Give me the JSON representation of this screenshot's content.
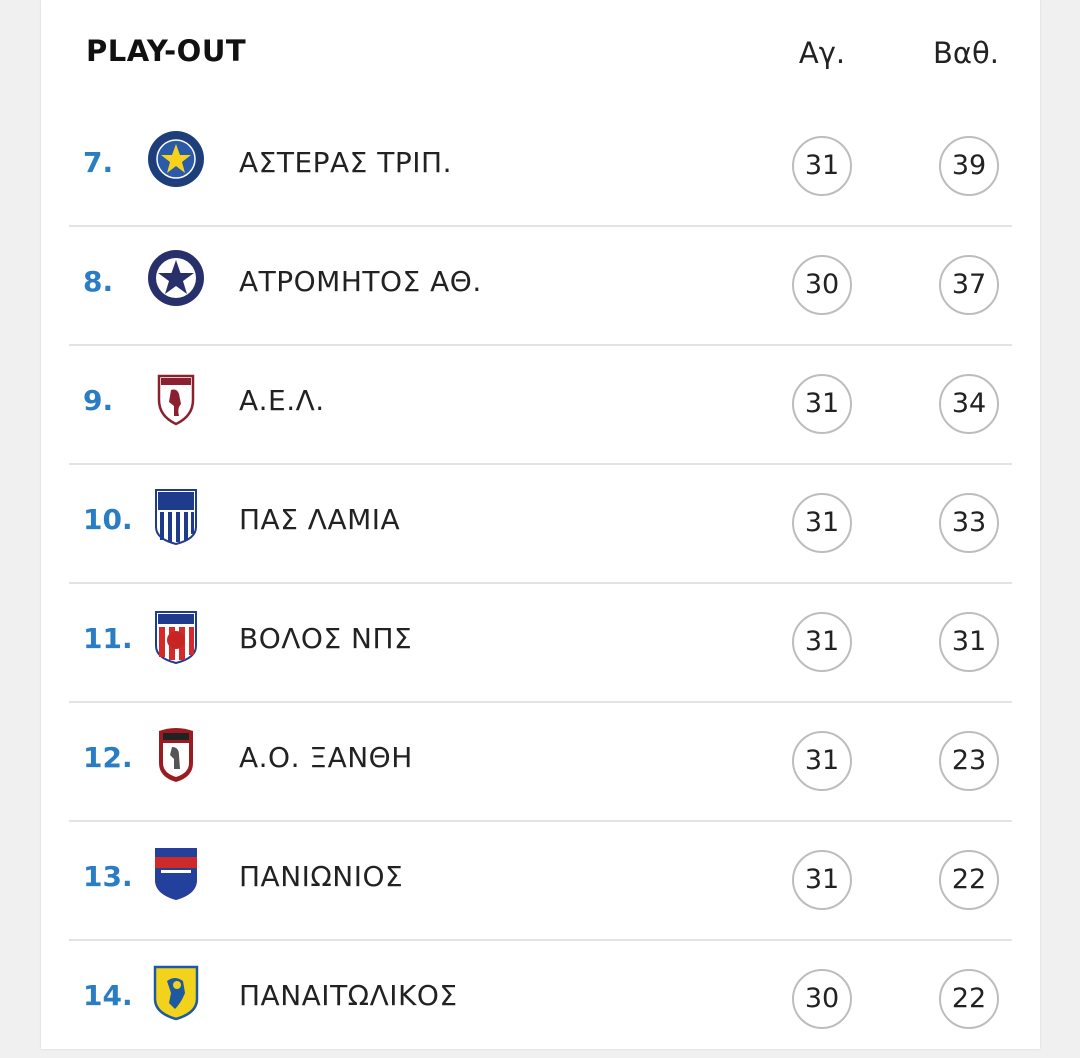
{
  "header": {
    "title": "PLAY-OUT",
    "games_label": "Αγ.",
    "points_label": "Βαθ."
  },
  "colors": {
    "position": "#2a7dc4",
    "divider": "#e3e3e3",
    "circle_border": "#bdbdbd"
  },
  "rows": [
    {
      "position": "7.",
      "team": "ΑΣΤΕΡΑΣ ΤΡΙΠ.",
      "games": "31",
      "points": "39",
      "logo": "asteras-tripolis-logo"
    },
    {
      "position": "8.",
      "team": "ΑΤΡΟΜΗΤΟΣ ΑΘ.",
      "games": "30",
      "points": "37",
      "logo": "atromitos-logo"
    },
    {
      "position": "9.",
      "team": "Α.Ε.Λ.",
      "games": "31",
      "points": "34",
      "logo": "ael-logo"
    },
    {
      "position": "10.",
      "team": "ΠΑΣ ΛΑΜΙΑ",
      "games": "31",
      "points": "33",
      "logo": "pas-lamia-logo"
    },
    {
      "position": "11.",
      "team": "ΒΟΛΟΣ ΝΠΣ",
      "games": "31",
      "points": "31",
      "logo": "volos-logo"
    },
    {
      "position": "12.",
      "team": "Α.Ο. ΞΑΝΘΗ",
      "games": "31",
      "points": "23",
      "logo": "xanthi-logo"
    },
    {
      "position": "13.",
      "team": "ΠΑΝΙΩΝΙΟΣ",
      "games": "31",
      "points": "22",
      "logo": "panionios-logo"
    },
    {
      "position": "14.",
      "team": "ΠΑΝΑΙΤΩΛΙΚΟΣ",
      "games": "30",
      "points": "22",
      "logo": "panaitolikos-logo"
    }
  ]
}
